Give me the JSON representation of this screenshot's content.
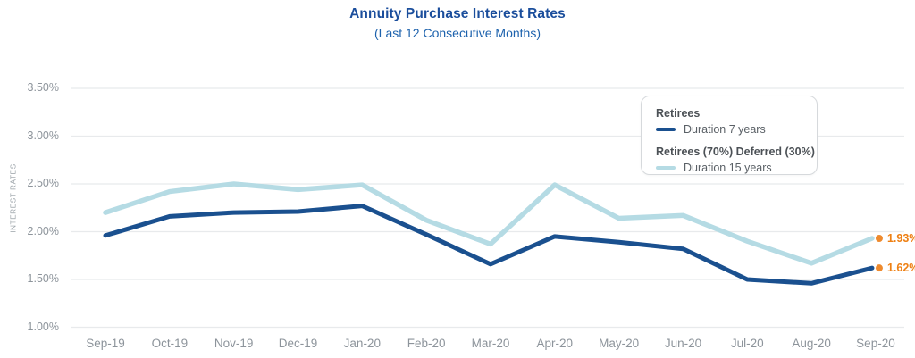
{
  "title": "Annuity Purchase Interest Rates",
  "subtitle": "(Last 12 Consecutive Months)",
  "y_axis": {
    "title": "INTEREST RATES",
    "tick_labels": [
      "3.50%",
      "3.00%",
      "2.50%",
      "2.00%",
      "1.50%",
      "1.00%"
    ]
  },
  "legend": {
    "groups": [
      {
        "title": "Retirees",
        "item": "Duration 7 years"
      },
      {
        "title": "Retirees (70%) Deferred (30%)",
        "item": "Duration 15 years"
      }
    ]
  },
  "colors": {
    "title": "#1b4e9c",
    "subtitle": "#1d62ad",
    "axis_text": "#8d949b",
    "grid": "#e8eaec",
    "duration_7_line": "#1a508f",
    "duration_15_line": "#b5dbe4",
    "end_dot": "#ee8a2e",
    "end_label_text": "#ee8014",
    "legend_border": "#d6d9dc"
  },
  "chart_data": {
    "type": "line",
    "title": "Annuity Purchase Interest Rates",
    "subtitle": "(Last 12 Consecutive Months)",
    "ylabel": "INTEREST RATES",
    "ylim": [
      1.0,
      3.5
    ],
    "y_ticks": [
      3.5,
      3.0,
      2.5,
      2.0,
      1.5,
      1.0
    ],
    "grid": "horizontal",
    "legend_position": "top-right",
    "categories": [
      "Sep-19",
      "Oct-19",
      "Nov-19",
      "Dec-19",
      "Jan-20",
      "Feb-20",
      "Mar-20",
      "Apr-20",
      "May-20",
      "Jun-20",
      "Jul-20",
      "Aug-20",
      "Sep-20"
    ],
    "series": [
      {
        "name": "Retirees",
        "label": "Duration 7 years",
        "color": "#1a508f",
        "stroke_width": 5,
        "values": [
          1.96,
          2.16,
          2.2,
          2.21,
          2.27,
          1.97,
          1.66,
          1.95,
          1.89,
          1.82,
          1.5,
          1.46,
          1.62
        ],
        "end_label": "1.62%"
      },
      {
        "name": "Retirees (70%) Deferred (30%)",
        "label": "Duration 15 years",
        "color": "#b5dbe4",
        "stroke_width": 5.5,
        "values": [
          2.2,
          2.42,
          2.5,
          2.44,
          2.49,
          2.12,
          1.87,
          2.49,
          2.14,
          2.17,
          1.9,
          1.67,
          1.93
        ],
        "end_label": "1.93%"
      }
    ]
  }
}
